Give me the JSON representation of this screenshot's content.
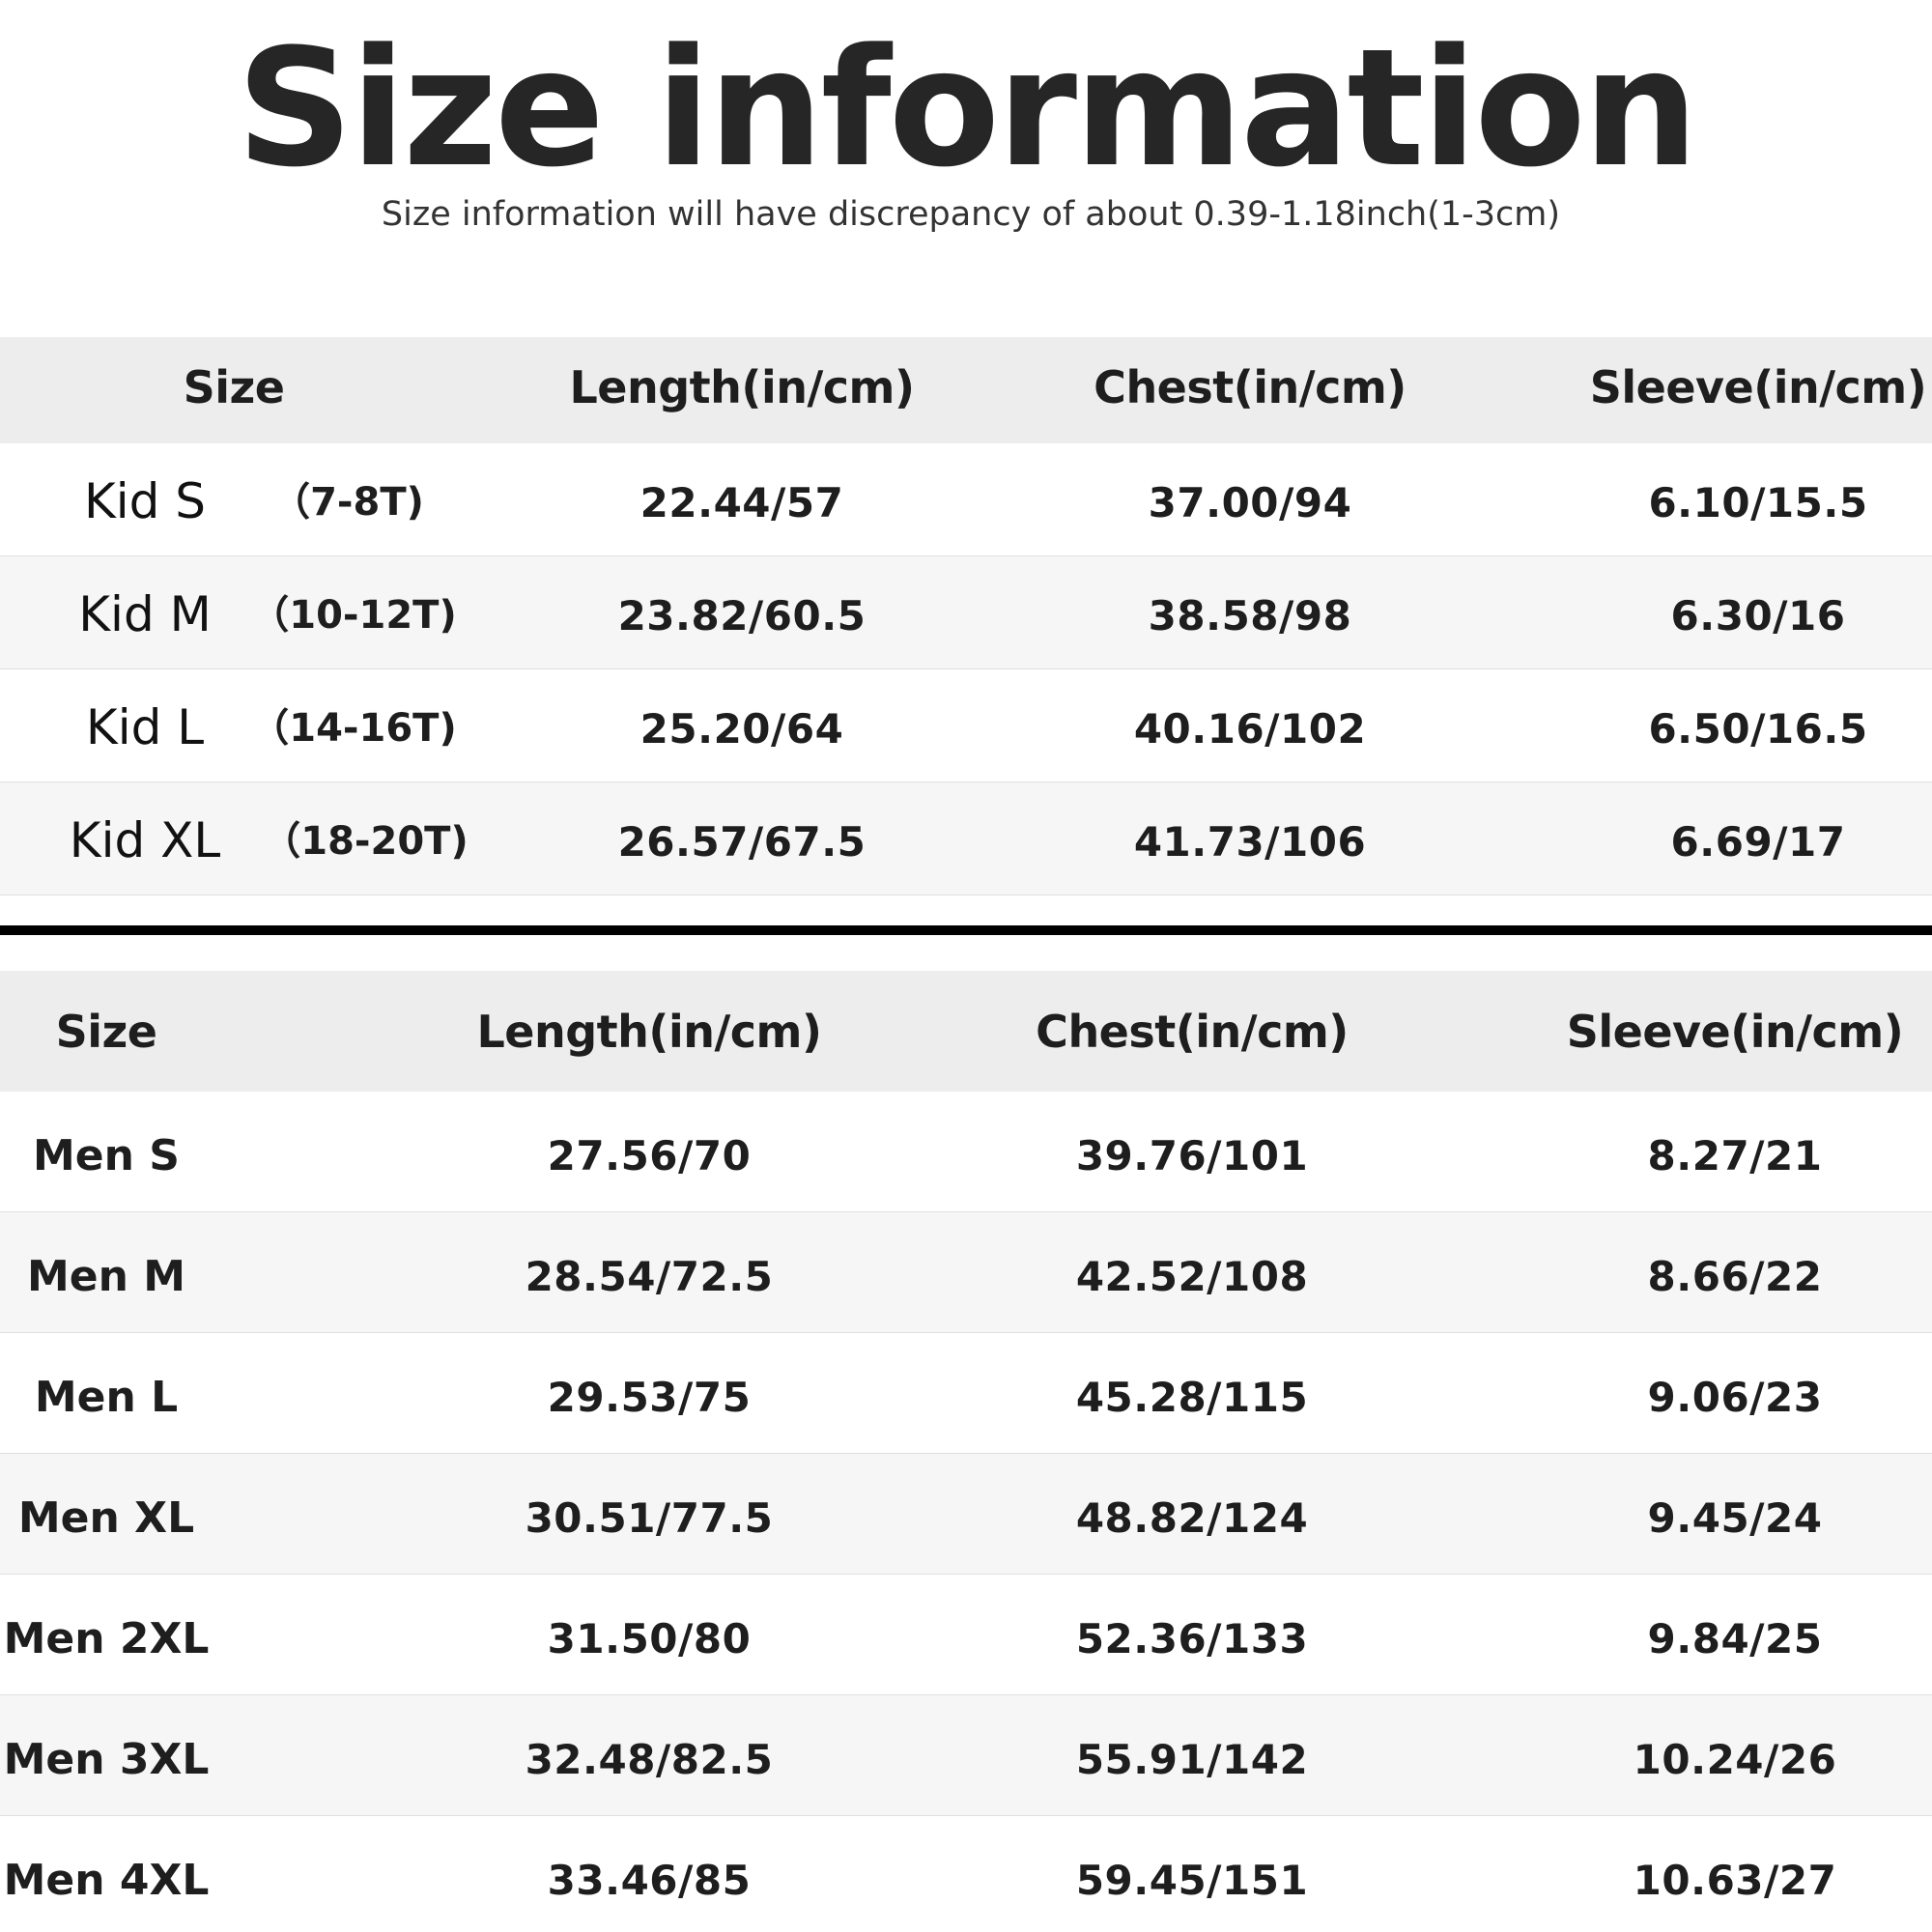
{
  "title": "Size information",
  "subtitle": "Size information will have discrepancy of about 0.39-1.18inch(1-3cm)",
  "kids_table": {
    "headers": [
      "Size",
      "Length(in/cm)",
      "Chest(in/cm)",
      "Sleeve(in/cm)"
    ],
    "rows": [
      {
        "size": "Kid S",
        "age": "（7-8T)",
        "length": "22.44/57",
        "chest": "37.00/94",
        "sleeve": "6.10/15.5"
      },
      {
        "size": "Kid M",
        "age": "（10-12T)",
        "length": "23.82/60.5",
        "chest": "38.58/98",
        "sleeve": "6.30/16"
      },
      {
        "size": "Kid L",
        "age": "（14-16T)",
        "length": "25.20/64",
        "chest": "40.16/102",
        "sleeve": "6.50/16.5"
      },
      {
        "size": "Kid XL",
        "age": "（18-20T)",
        "length": "26.57/67.5",
        "chest": "41.73/106",
        "sleeve": "6.69/17"
      }
    ]
  },
  "men_table": {
    "headers": [
      "Size",
      "Length(in/cm)",
      "Chest(in/cm)",
      "Sleeve(in/cm)"
    ],
    "rows": [
      {
        "size": "Men S",
        "length": "27.56/70",
        "chest": "39.76/101",
        "sleeve": "8.27/21"
      },
      {
        "size": "Men M",
        "length": "28.54/72.5",
        "chest": "42.52/108",
        "sleeve": "8.66/22"
      },
      {
        "size": "Men L",
        "length": "29.53/75",
        "chest": "45.28/115",
        "sleeve": "9.06/23"
      },
      {
        "size": "Men XL",
        "length": "30.51/77.5",
        "chest": "48.82/124",
        "sleeve": "9.45/24"
      },
      {
        "size": "Men 2XL",
        "length": "31.50/80",
        "chest": "52.36/133",
        "sleeve": "9.84/25"
      },
      {
        "size": "Men 3XL",
        "length": "32.48/82.5",
        "chest": "55.91/142",
        "sleeve": "10.24/26"
      },
      {
        "size": "Men 4XL",
        "length": "33.46/85",
        "chest": "59.45/151",
        "sleeve": "10.63/27"
      }
    ]
  }
}
